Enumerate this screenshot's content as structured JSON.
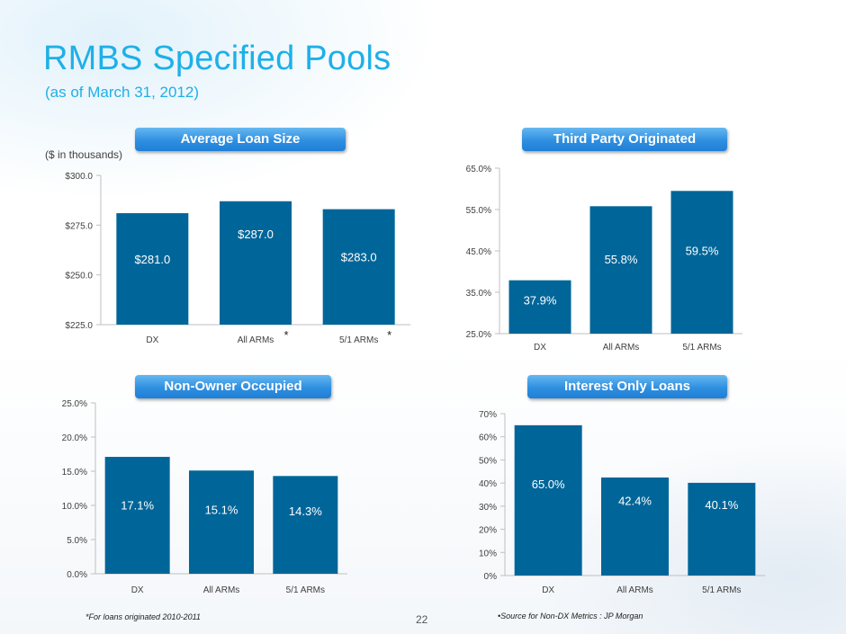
{
  "header": {
    "title": "RMBS Specified Pools",
    "subtitle": "(as of March 31, 2012)",
    "units": "($ in thousands)"
  },
  "colors": {
    "bar": "#006699",
    "accent": "#1eb0e8",
    "pill": "#2f8fe0"
  },
  "chart_data": [
    {
      "type": "bar",
      "title": "Average Loan Size",
      "categories": [
        "DX",
        "All ARMs",
        "5/1 ARMs"
      ],
      "values": [
        281.0,
        287.0,
        283.0
      ],
      "value_labels": [
        "$281.0",
        "$287.0",
        "$283.0"
      ],
      "ylim": [
        225,
        300
      ],
      "yticks": [
        225,
        250,
        275,
        300
      ],
      "ytick_labels": [
        "$225.0",
        "$250.0",
        "$275.0",
        "$300.0"
      ],
      "category_markers": [
        "",
        "*",
        "*"
      ]
    },
    {
      "type": "bar",
      "title": "Third Party Originated",
      "categories": [
        "DX",
        "All ARMs",
        "5/1 ARMs"
      ],
      "values": [
        37.9,
        55.8,
        59.5
      ],
      "value_labels": [
        "37.9%",
        "55.8%",
        "59.5%"
      ],
      "ylim": [
        25,
        65
      ],
      "yticks": [
        25,
        35,
        45,
        55,
        65
      ],
      "ytick_labels": [
        "25.0%",
        "35.0%",
        "45.0%",
        "55.0%",
        "65.0%"
      ]
    },
    {
      "type": "bar",
      "title": "Non-Owner Occupied",
      "categories": [
        "DX",
        "All ARMs",
        "5/1 ARMs"
      ],
      "values": [
        17.1,
        15.1,
        14.3
      ],
      "value_labels": [
        "17.1%",
        "15.1%",
        "14.3%"
      ],
      "ylim": [
        0,
        25
      ],
      "yticks": [
        0,
        5,
        10,
        15,
        20,
        25
      ],
      "ytick_labels": [
        "0.0%",
        "5.0%",
        "10.0%",
        "15.0%",
        "20.0%",
        "25.0%"
      ]
    },
    {
      "type": "bar",
      "title": "Interest Only Loans",
      "categories": [
        "DX",
        "All ARMs",
        "5/1 ARMs"
      ],
      "values": [
        65.0,
        42.4,
        40.1
      ],
      "value_labels": [
        "65.0%",
        "42.4%",
        "40.1%"
      ],
      "ylim": [
        0,
        70
      ],
      "yticks": [
        0,
        10,
        20,
        30,
        40,
        50,
        60,
        70
      ],
      "ytick_labels": [
        "0%",
        "10%",
        "20%",
        "30%",
        "40%",
        "50%",
        "60%",
        "70%"
      ]
    }
  ],
  "footer": {
    "left_note": "*For loans originated 2010-2011",
    "right_note": "•Source for Non-DX Metrics : JP Morgan",
    "page_number": "22"
  }
}
